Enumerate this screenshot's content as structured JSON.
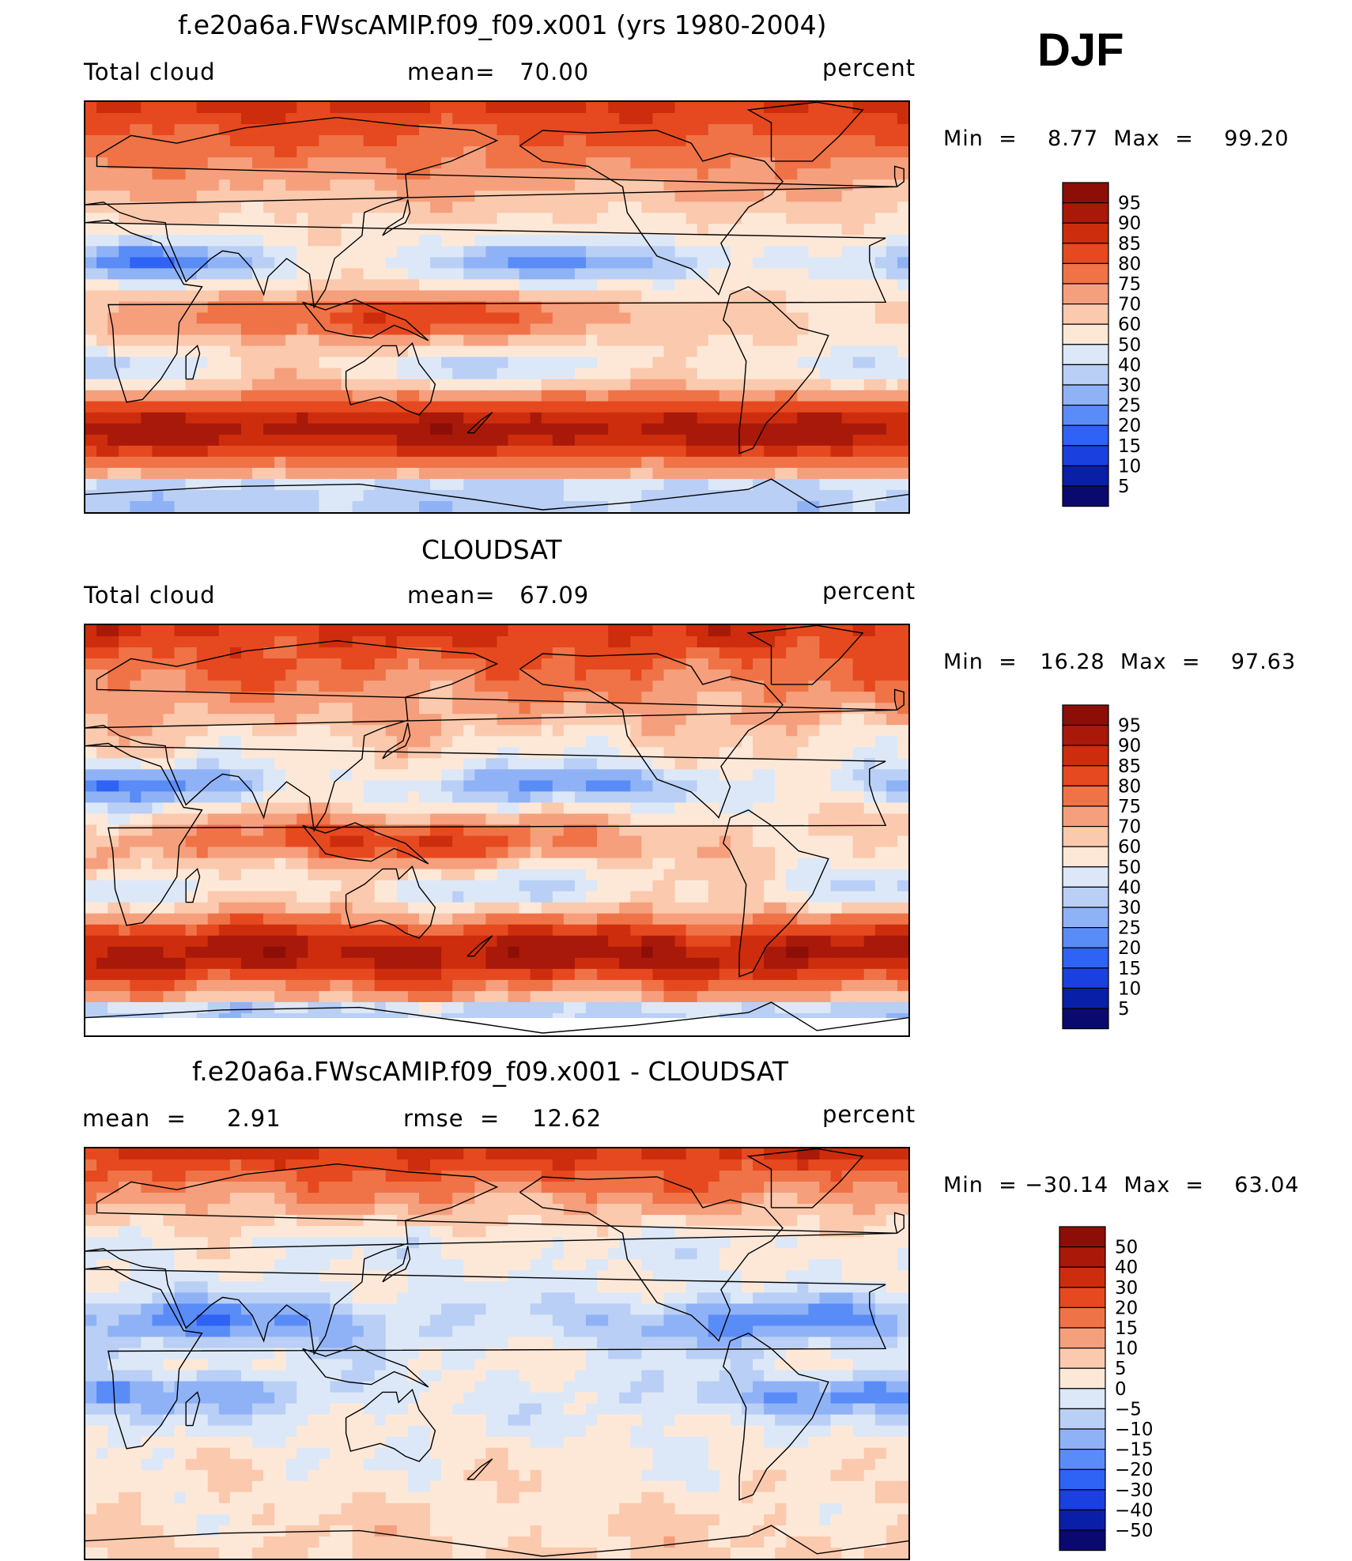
{
  "season": "DJF",
  "colors": {
    "full": [
      "#0a0a6e",
      "#0a1fa8",
      "#1a40e0",
      "#2f63f5",
      "#5a8cf7",
      "#8fb2f7",
      "#b9cff5",
      "#dce8f7",
      "#fde8d8",
      "#fbc9ad",
      "#f69f7c",
      "#ef7347",
      "#e6491f",
      "#cd2d0c",
      "#a8190a",
      "#8c0e07"
    ]
  },
  "panels": [
    {
      "title": "f.e20a6a.FWscAMIP.f09_f09.x001 (yrs 1980-2004)",
      "left_label": "Total cloud",
      "center_label": "mean=   70.00",
      "right_label": "percent",
      "minmax": "Min  =    8.77  Max  =    99.20",
      "colorbar_labels": [
        "95",
        "90",
        "85",
        "80",
        "75",
        "70",
        "60",
        "50",
        "40",
        "30",
        "25",
        "20",
        "15",
        "10",
        "5"
      ],
      "pattern": "model"
    },
    {
      "title": "CLOUDSAT",
      "left_label": "Total cloud",
      "center_label": "mean=   67.09",
      "right_label": "percent",
      "minmax": "Min  =   16.28  Max  =    97.63",
      "colorbar_labels": [
        "95",
        "90",
        "85",
        "80",
        "75",
        "70",
        "60",
        "50",
        "40",
        "30",
        "25",
        "20",
        "15",
        "10",
        "5"
      ],
      "pattern": "obs"
    },
    {
      "title": "f.e20a6a.FWscAMIP.f09_f09.x001 - CLOUDSAT",
      "left_label": "mean  =     2.91",
      "center_label": "rmse  =    12.62",
      "right_label": "percent",
      "minmax": "Min  = −30.14  Max  =    63.04",
      "colorbar_labels": [
        "50",
        "40",
        "30",
        "20",
        "15",
        "10",
        "5",
        "0",
        "−5",
        "−10",
        "−15",
        "−20",
        "−30",
        "−40",
        "−50"
      ],
      "pattern": "diff"
    }
  ]
}
